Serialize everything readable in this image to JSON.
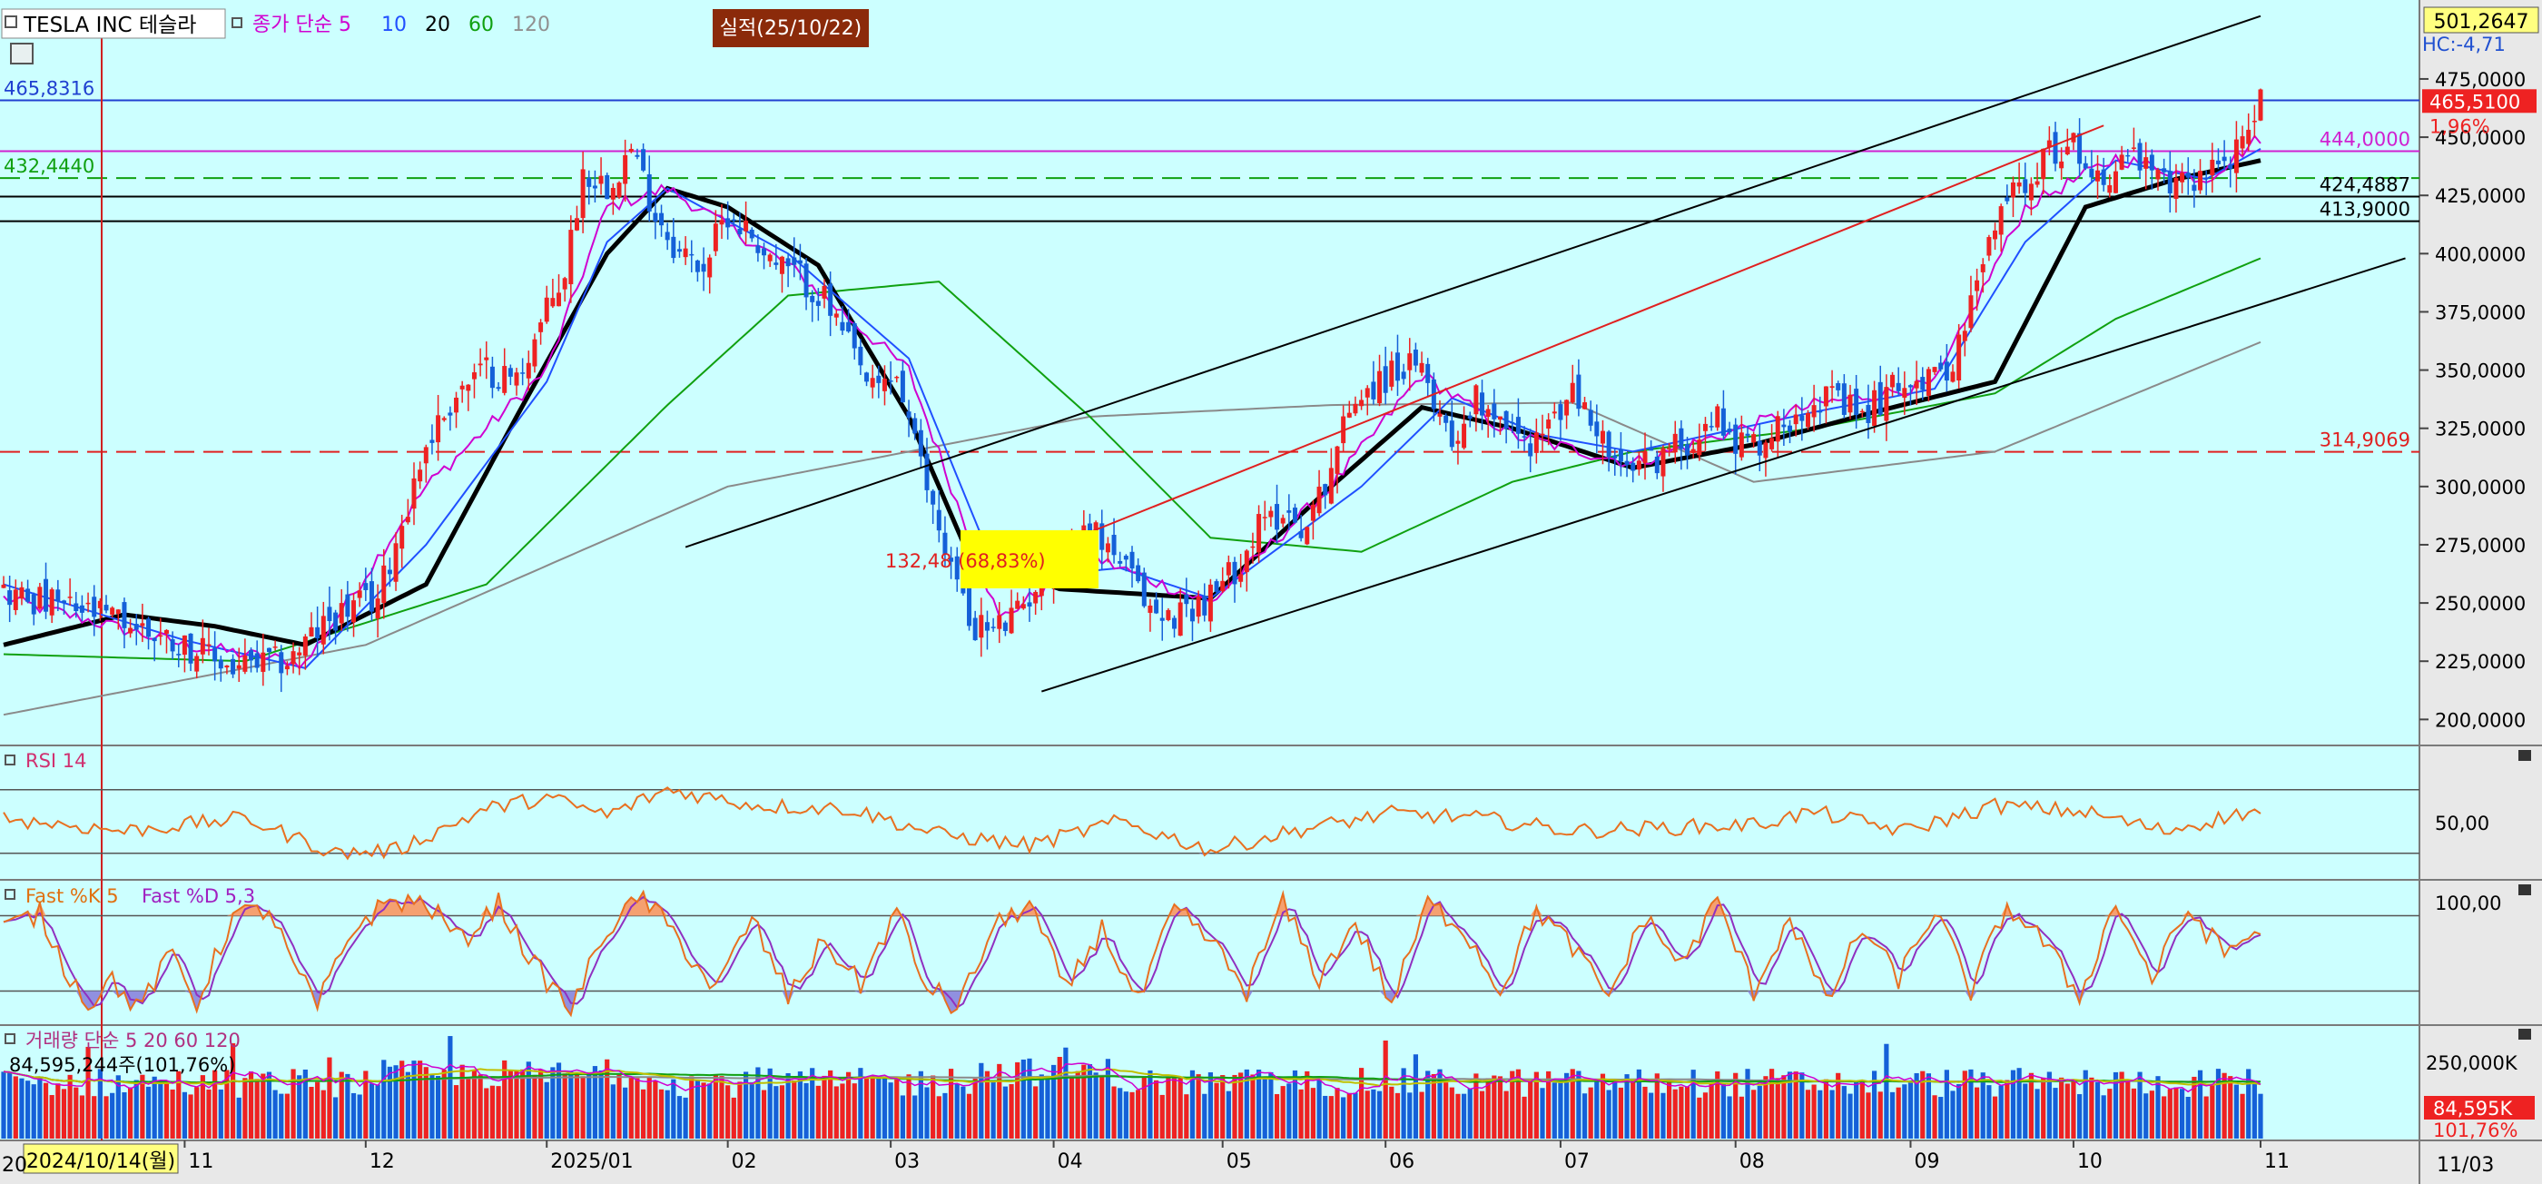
{
  "header": {
    "stock": "TESLA INC 테슬라",
    "ma_legend": [
      {
        "label": "종가 단순 5",
        "color": "#d000d0"
      },
      {
        "label": "10",
        "color": "#2050ff"
      },
      {
        "label": "20",
        "color": "#000000"
      },
      {
        "label": "60",
        "color": "#10a010"
      },
      {
        "label": "120",
        "color": "#909090"
      }
    ],
    "earnings_tag": "실적(25/10/22)",
    "top_right_value": "501,2647",
    "hc_text": "HC:-4,71"
  },
  "colors": {
    "bg": "#ccffff",
    "up": "#ee2222",
    "down": "#1560d8",
    "axis_bg": "#e8e8e8"
  },
  "price_panel": {
    "chart_data": {
      "type": "candlestick",
      "ylim": [
        190,
        505
      ],
      "yticks": [
        "475,0000",
        "450,0000",
        "425,0000",
        "400,0000",
        "375,0000",
        "350,0000",
        "325,0000",
        "300,0000",
        "275,0000",
        "250,0000",
        "225,0000",
        "200,0000"
      ],
      "series_anchors": {
        "close": [
          [
            0,
            255
          ],
          [
            10,
            248
          ],
          [
            20,
            242
          ],
          [
            30,
            232
          ],
          [
            38,
            222
          ],
          [
            47,
            225
          ],
          [
            55,
            245
          ],
          [
            62,
            252
          ],
          [
            70,
            318
          ],
          [
            75,
            340
          ],
          [
            80,
            350
          ],
          [
            85,
            346
          ],
          [
            90,
            375
          ],
          [
            93,
            392
          ],
          [
            96,
            435
          ],
          [
            100,
            430
          ],
          [
            104,
            445
          ],
          [
            108,
            418
          ],
          [
            112,
            400
          ],
          [
            116,
            395
          ],
          [
            120,
            418
          ],
          [
            124,
            408
          ],
          [
            128,
            395
          ],
          [
            132,
            390
          ],
          [
            136,
            380
          ],
          [
            140,
            360
          ],
          [
            144,
            340
          ],
          [
            148,
            348
          ],
          [
            152,
            308
          ],
          [
            156,
            275
          ],
          [
            160,
            242
          ],
          [
            164,
            238
          ],
          [
            168,
            245
          ],
          [
            172,
            262
          ],
          [
            176,
            275
          ],
          [
            180,
            282
          ],
          [
            184,
            272
          ],
          [
            188,
            255
          ],
          [
            192,
            242
          ],
          [
            196,
            248
          ],
          [
            200,
            252
          ],
          [
            204,
            265
          ],
          [
            208,
            282
          ],
          [
            212,
            290
          ],
          [
            216,
            282
          ],
          [
            220,
            310
          ],
          [
            224,
            340
          ],
          [
            228,
            345
          ],
          [
            232,
            352
          ],
          [
            236,
            345
          ],
          [
            240,
            320
          ],
          [
            244,
            338
          ],
          [
            248,
            332
          ],
          [
            252,
            318
          ],
          [
            256,
            325
          ],
          [
            260,
            340
          ],
          [
            264,
            325
          ],
          [
            268,
            305
          ],
          [
            272,
            310
          ],
          [
            276,
            315
          ],
          [
            280,
            322
          ],
          [
            284,
            330
          ],
          [
            288,
            318
          ],
          [
            292,
            320
          ],
          [
            296,
            330
          ],
          [
            300,
            340
          ],
          [
            304,
            335
          ],
          [
            308,
            330
          ],
          [
            312,
            340
          ],
          [
            316,
            348
          ],
          [
            320,
            345
          ],
          [
            324,
            360
          ],
          [
            328,
            395
          ],
          [
            332,
            425
          ],
          [
            336,
            435
          ],
          [
            340,
            445
          ],
          [
            344,
            445
          ],
          [
            348,
            430
          ],
          [
            352,
            445
          ],
          [
            356,
            432
          ],
          [
            360,
            428
          ],
          [
            364,
            435
          ],
          [
            368,
            440
          ],
          [
            372,
            448
          ],
          [
            374,
            466
          ]
        ],
        "ma5": [
          [
            0,
            252
          ],
          [
            30,
            232
          ],
          [
            50,
            224
          ],
          [
            70,
            300
          ],
          [
            90,
            350
          ],
          [
            100,
            420
          ],
          [
            110,
            428
          ],
          [
            130,
            395
          ],
          [
            150,
            350
          ],
          [
            165,
            243
          ],
          [
            180,
            270
          ],
          [
            200,
            250
          ],
          [
            220,
            300
          ],
          [
            235,
            348
          ],
          [
            250,
            322
          ],
          [
            270,
            310
          ],
          [
            300,
            335
          ],
          [
            320,
            344
          ],
          [
            335,
            420
          ],
          [
            350,
            441
          ],
          [
            365,
            432
          ],
          [
            374,
            450
          ]
        ],
        "ma10": [
          [
            0,
            258
          ],
          [
            30,
            234
          ],
          [
            50,
            222
          ],
          [
            70,
            275
          ],
          [
            90,
            345
          ],
          [
            100,
            405
          ],
          [
            110,
            428
          ],
          [
            130,
            400
          ],
          [
            150,
            355
          ],
          [
            165,
            260
          ],
          [
            185,
            265
          ],
          [
            200,
            252
          ],
          [
            225,
            300
          ],
          [
            240,
            338
          ],
          [
            255,
            322
          ],
          [
            270,
            315
          ],
          [
            300,
            332
          ],
          [
            320,
            342
          ],
          [
            335,
            405
          ],
          [
            350,
            440
          ],
          [
            365,
            432
          ],
          [
            374,
            445
          ]
        ],
        "ma20": [
          [
            0,
            232
          ],
          [
            20,
            245
          ],
          [
            35,
            240
          ],
          [
            50,
            232
          ],
          [
            70,
            258
          ],
          [
            85,
            330
          ],
          [
            100,
            400
          ],
          [
            110,
            428
          ],
          [
            120,
            420
          ],
          [
            135,
            395
          ],
          [
            150,
            330
          ],
          [
            160,
            270
          ],
          [
            175,
            256
          ],
          [
            200,
            252
          ],
          [
            220,
            300
          ],
          [
            235,
            334
          ],
          [
            250,
            325
          ],
          [
            270,
            308
          ],
          [
            290,
            318
          ],
          [
            310,
            332
          ],
          [
            330,
            345
          ],
          [
            345,
            420
          ],
          [
            360,
            432
          ],
          [
            374,
            440
          ]
        ],
        "ma60": [
          [
            0,
            228
          ],
          [
            40,
            225
          ],
          [
            80,
            258
          ],
          [
            110,
            335
          ],
          [
            130,
            382
          ],
          [
            155,
            388
          ],
          [
            180,
            330
          ],
          [
            200,
            278
          ],
          [
            225,
            272
          ],
          [
            250,
            302
          ],
          [
            270,
            315
          ],
          [
            300,
            325
          ],
          [
            330,
            340
          ],
          [
            350,
            372
          ],
          [
            374,
            398
          ]
        ],
        "ma120": [
          [
            0,
            202
          ],
          [
            60,
            232
          ],
          [
            120,
            300
          ],
          [
            180,
            330
          ],
          [
            220,
            335
          ],
          [
            260,
            336
          ],
          [
            290,
            302
          ],
          [
            330,
            315
          ],
          [
            374,
            362
          ]
        ]
      },
      "horizontal_lines": [
        {
          "label": "465,8316",
          "value": 465.8316,
          "color": "#2040d0",
          "side": "left",
          "dash": false
        },
        {
          "label": "444,0000",
          "value": 444.0,
          "color": "#d020d0",
          "side": "right",
          "dash": false
        },
        {
          "label": "432,4440",
          "value": 432.444,
          "color": "#10a010",
          "side": "left",
          "dash": true
        },
        {
          "label": "424,4887",
          "value": 424.4887,
          "color": "#000000",
          "side": "right",
          "dash": false
        },
        {
          "label": "413,9000",
          "value": 413.9,
          "color": "#000000",
          "side": "right",
          "dash": false
        },
        {
          "label": "314,9069",
          "value": 314.9069,
          "color": "#e02020",
          "side": "right",
          "dash": true
        }
      ],
      "trendlines": [
        {
          "from": [
            113,
            274
          ],
          "to": [
            374,
            502
          ],
          "color": "#000000"
        },
        {
          "from": [
            172,
            212
          ],
          "to": [
            398,
            398
          ],
          "color": "#000000"
        },
        {
          "from": [
            170,
            270
          ],
          "to": [
            348,
            455
          ],
          "color": "#e02020"
        }
      ],
      "price_tags": [
        {
          "label": "465,5100",
          "value": 465.51,
          "bg": "#ee2222",
          "fg": "#ffffff"
        },
        {
          "label": "1,96%",
          "value": 455,
          "bg": "",
          "fg": "#ee2222"
        }
      ],
      "annotation": "132,48 (68,83%)"
    }
  },
  "rsi_panel": {
    "title": "RSI 14",
    "tick": "50,00",
    "ylim": [
      15,
      95
    ],
    "levels": [
      70,
      30
    ],
    "anchors": [
      [
        0,
        52
      ],
      [
        20,
        44
      ],
      [
        40,
        52
      ],
      [
        55,
        30
      ],
      [
        65,
        32
      ],
      [
        80,
        58
      ],
      [
        90,
        65
      ],
      [
        100,
        54
      ],
      [
        110,
        70
      ],
      [
        125,
        60
      ],
      [
        140,
        58
      ],
      [
        155,
        42
      ],
      [
        170,
        35
      ],
      [
        185,
        50
      ],
      [
        200,
        32
      ],
      [
        215,
        45
      ],
      [
        230,
        55
      ],
      [
        245,
        52
      ],
      [
        260,
        44
      ],
      [
        275,
        46
      ],
      [
        290,
        48
      ],
      [
        300,
        56
      ],
      [
        315,
        44
      ],
      [
        330,
        60
      ],
      [
        345,
        56
      ],
      [
        358,
        44
      ],
      [
        372,
        56
      ]
    ]
  },
  "stoch_panel": {
    "title_k": "Fast %K 5",
    "title_d": "Fast %D 5,3",
    "tick": "100,00",
    "ylim": [
      -5,
      105
    ],
    "levels": [
      80,
      20
    ],
    "anchors": [
      [
        0,
        70
      ],
      [
        6,
        82
      ],
      [
        10,
        40
      ],
      [
        14,
        10
      ],
      [
        18,
        30
      ],
      [
        22,
        5
      ],
      [
        28,
        50
      ],
      [
        32,
        10
      ],
      [
        38,
        80
      ],
      [
        44,
        85
      ],
      [
        48,
        40
      ],
      [
        52,
        8
      ],
      [
        58,
        70
      ],
      [
        64,
        92
      ],
      [
        70,
        90
      ],
      [
        76,
        60
      ],
      [
        82,
        90
      ],
      [
        88,
        40
      ],
      [
        94,
        5
      ],
      [
        100,
        70
      ],
      [
        106,
        95
      ],
      [
        112,
        60
      ],
      [
        118,
        20
      ],
      [
        124,
        78
      ],
      [
        130,
        15
      ],
      [
        136,
        60
      ],
      [
        142,
        25
      ],
      [
        148,
        85
      ],
      [
        152,
        30
      ],
      [
        158,
        5
      ],
      [
        164,
        70
      ],
      [
        170,
        90
      ],
      [
        176,
        20
      ],
      [
        182,
        70
      ],
      [
        188,
        10
      ],
      [
        194,
        85
      ],
      [
        200,
        60
      ],
      [
        206,
        20
      ],
      [
        212,
        90
      ],
      [
        218,
        30
      ],
      [
        224,
        75
      ],
      [
        230,
        10
      ],
      [
        236,
        90
      ],
      [
        242,
        70
      ],
      [
        248,
        20
      ],
      [
        254,
        85
      ],
      [
        260,
        55
      ],
      [
        266,
        15
      ],
      [
        272,
        80
      ],
      [
        278,
        40
      ],
      [
        284,
        92
      ],
      [
        290,
        20
      ],
      [
        296,
        80
      ],
      [
        302,
        10
      ],
      [
        308,
        70
      ],
      [
        314,
        30
      ],
      [
        320,
        85
      ],
      [
        326,
        20
      ],
      [
        332,
        88
      ],
      [
        338,
        60
      ],
      [
        344,
        15
      ],
      [
        350,
        90
      ],
      [
        356,
        30
      ],
      [
        362,
        85
      ],
      [
        368,
        50
      ],
      [
        374,
        70
      ]
    ]
  },
  "volume_panel": {
    "title": "거래량 단순 5 20 60 120",
    "value_text": "84,595,244주(101,76%)",
    "tick": "250,000K",
    "tag_value": "84,595K",
    "tag_pct": "101,76%"
  },
  "x_axis": {
    "labels": [
      {
        "label": "2024/10/14(월)",
        "index": 0,
        "highlight": true
      },
      {
        "label": "11",
        "index": 30
      },
      {
        "label": "12",
        "index": 60
      },
      {
        "label": "2025/01",
        "index": 90
      },
      {
        "label": "02",
        "index": 120
      },
      {
        "label": "03",
        "index": 147
      },
      {
        "label": "04",
        "index": 174
      },
      {
        "label": "05",
        "index": 202
      },
      {
        "label": "06",
        "index": 229
      },
      {
        "label": "07",
        "index": 258
      },
      {
        "label": "08",
        "index": 287
      },
      {
        "label": "09",
        "index": 316
      },
      {
        "label": "10",
        "index": 343
      },
      {
        "label": "11",
        "index": 374
      }
    ],
    "right_label": "11/03",
    "left_edge_label": "20"
  }
}
